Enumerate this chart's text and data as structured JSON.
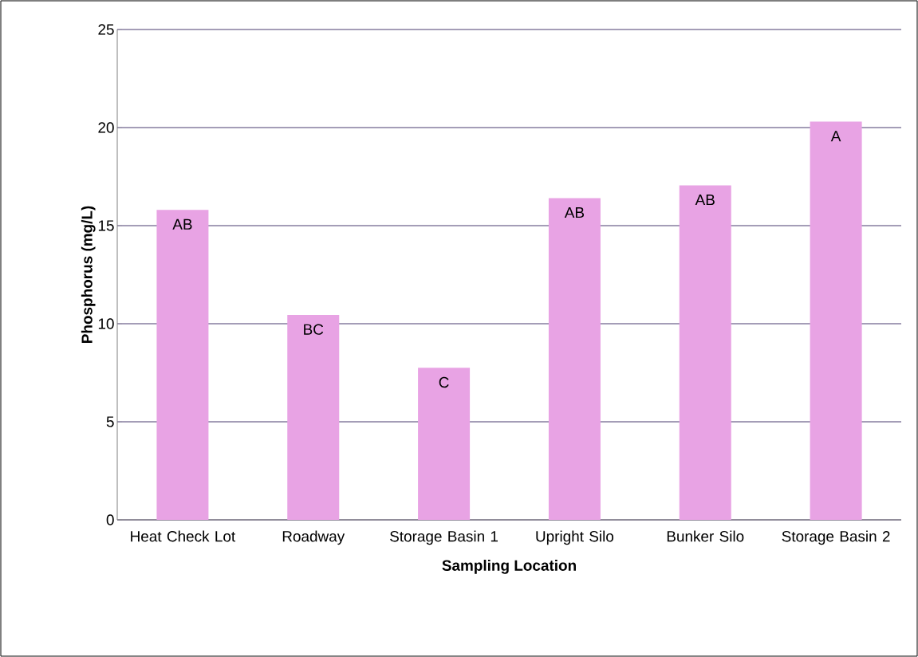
{
  "chart_data": {
    "type": "bar",
    "xlabel": "Sampling Location",
    "ylabel": "Phosphorus (mg/L)",
    "categories": [
      "Heat Check Lot",
      "Roadway",
      "Storage Basin 1",
      "Upright Silo",
      "Bunker Silo",
      "Storage Basin 2"
    ],
    "values": [
      15.8,
      10.45,
      7.75,
      16.4,
      17.05,
      20.3
    ],
    "color": "#e8a3e4",
    "ylim": [
      0,
      25
    ],
    "yticks": [
      0,
      5,
      10,
      15,
      20,
      25
    ],
    "grid": "y",
    "value_labels": [
      "AB",
      "BC",
      "C",
      "AB",
      "AB",
      "A"
    ]
  }
}
